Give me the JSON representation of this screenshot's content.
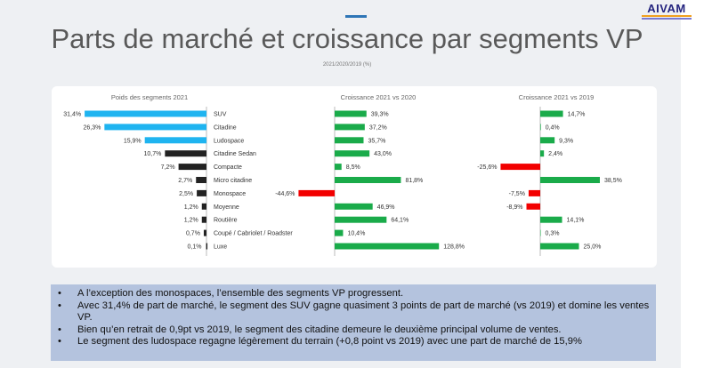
{
  "header": {
    "title": "Parts de marché et croissance par segments VP",
    "subtitle": "2021/2020/2019 (%)",
    "logo_text": "AIVAM"
  },
  "chart_data": [
    {
      "type": "bar",
      "title": "Poids des segments 2021",
      "orientation": "horizontal-left",
      "categories": [
        "SUV",
        "Citadine",
        "Ludospace",
        "Citadine Sedan",
        "Compacte",
        "Micro citadine",
        "Monospace",
        "Moyenne",
        "Routière",
        "Coupé / Cabriolet / Roadster",
        "Luxe"
      ],
      "values": [
        31.4,
        26.3,
        15.9,
        10.7,
        7.2,
        2.7,
        2.5,
        1.2,
        1.2,
        0.7,
        0.1
      ],
      "labels": [
        "31,4%",
        "26,3%",
        "15,9%",
        "10,7%",
        "7,2%",
        "2,7%",
        "2,5%",
        "1,2%",
        "1,2%",
        "0,7%",
        "0,1%"
      ],
      "colors": [
        "#1fb4f0",
        "#1fb4f0",
        "#1fb4f0",
        "#222222",
        "#222222",
        "#222222",
        "#222222",
        "#222222",
        "#222222",
        "#222222",
        "#222222"
      ]
    },
    {
      "type": "bar",
      "title": "Croissance 2021 vs 2020",
      "values": [
        39.3,
        37.2,
        35.7,
        43.0,
        8.5,
        81.8,
        -44.6,
        46.9,
        64.1,
        10.4,
        128.8
      ],
      "labels": [
        "39,3%",
        "37,2%",
        "35,7%",
        "43,0%",
        "8,5%",
        "81,8%",
        "-44,6%",
        "46,9%",
        "64,1%",
        "10,4%",
        "128,8%"
      ]
    },
    {
      "type": "bar",
      "title": "Croissance 2021 vs 2019",
      "values": [
        14.7,
        0.4,
        9.3,
        2.4,
        -25.6,
        38.5,
        -7.5,
        -8.9,
        14.1,
        0.3,
        25.0
      ],
      "labels": [
        "14,7%",
        "0,4%",
        "9,3%",
        "2,4%",
        "-25,6%",
        "38,5%",
        "-7,5%",
        "-8,9%",
        "14,1%",
        "0,3%",
        "25,0%"
      ]
    }
  ],
  "colors": {
    "positive": "#1aab4a",
    "negative": "#f20000"
  },
  "bullets": [
    "A l’exception des monospaces, l’ensemble des segments VP progressent.",
    "Avec 31,4% de part de marché, le segment des SUV gagne quasiment 3 points de part de marché (vs 2019) et domine les ventes VP.",
    "Bien qu’en retrait de 0,9pt vs 2019, le segment des citadine demeure le deuxième principal volume de ventes.",
    "Le segment des ludospace regagne légèrement du terrain (+0,8 point vs 2019) avec une part de marché de 15,9%"
  ]
}
